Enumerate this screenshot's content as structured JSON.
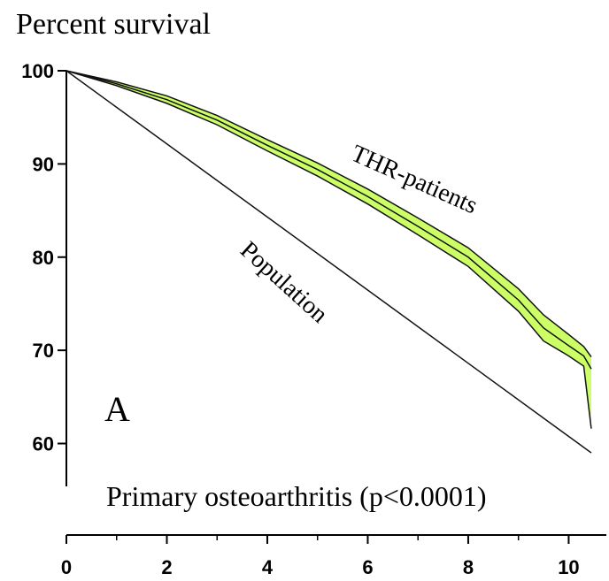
{
  "chart_data": {
    "type": "line",
    "title": "Percent survival",
    "subtitle": "Primary osteoarthritis (p<0.0001)",
    "panel_label": "A",
    "xlim": [
      0,
      10.75
    ],
    "ylim": [
      55.4,
      100
    ],
    "xticks": [
      0,
      2,
      4,
      6,
      8,
      10
    ],
    "xminorticks": [
      1,
      3,
      5,
      7,
      9
    ],
    "yticks": [
      60,
      70,
      80,
      90,
      100
    ],
    "band_color": "#ccff66",
    "series": [
      {
        "name": "THR-patients",
        "color": "#111111",
        "x": [
          0,
          1,
          2,
          3,
          4,
          5,
          6,
          7,
          8,
          9,
          9.5,
          10,
          10.3,
          10.45
        ],
        "values": [
          100,
          98.6,
          96.9,
          94.7,
          92,
          89.4,
          86.5,
          83.3,
          80,
          75.4,
          72.4,
          70.5,
          69.4,
          68
        ]
      },
      {
        "color": "#111111",
        "x": [
          0,
          1,
          2,
          3,
          4,
          5,
          6,
          7,
          8,
          9,
          9.5,
          10,
          10.3,
          10.45
        ],
        "values": [
          100,
          98.8,
          97.3,
          95.2,
          92.6,
          90.1,
          87.3,
          84.2,
          81,
          76.6,
          73.8,
          71.7,
          70.4,
          69.3
        ]
      },
      {
        "color": "#111111",
        "x": [
          0,
          1,
          2,
          3,
          4,
          5,
          6,
          7,
          8,
          9,
          9.5,
          10,
          10.3,
          10.45
        ],
        "values": [
          100,
          98.4,
          96.5,
          94.2,
          91.4,
          88.7,
          85.7,
          82.4,
          79,
          74.2,
          71,
          69.4,
          68.3,
          61.6
        ]
      },
      {
        "name": "Population",
        "color": "#111111",
        "x": [
          0,
          10.45
        ],
        "values": [
          100,
          59
        ]
      }
    ]
  }
}
